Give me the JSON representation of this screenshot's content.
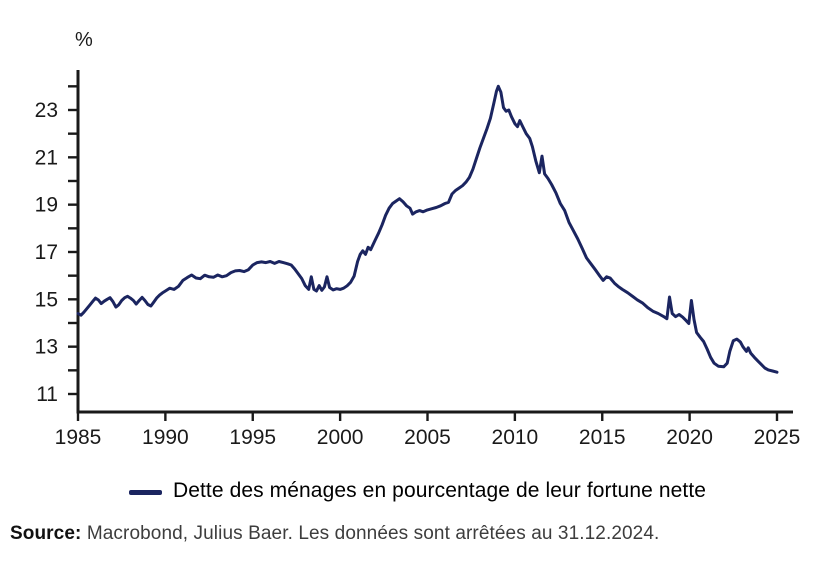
{
  "chart_data": {
    "type": "line",
    "title": "",
    "ylabel": "%",
    "xlabel": "",
    "grid": false,
    "legend_position": "bottom",
    "xlim": [
      1985,
      2025.9
    ],
    "ylim": [
      10.2,
      24.7
    ],
    "x_ticks": [
      1985,
      1990,
      1995,
      2000,
      2005,
      2010,
      2015,
      2020,
      2025
    ],
    "y_ticks": [
      11,
      12,
      13,
      14,
      15,
      16,
      17,
      18,
      19,
      20,
      21,
      22,
      23,
      24
    ],
    "y_tick_labels": [
      11,
      13,
      15,
      17,
      19,
      21,
      23
    ],
    "series": [
      {
        "name": "Dette des ménages en pourcentage de leur fortune nette",
        "color": "#1b2560",
        "points": [
          [
            1985.0,
            14.4
          ],
          [
            1985.17,
            14.33
          ],
          [
            1985.33,
            14.45
          ],
          [
            1985.5,
            14.6
          ],
          [
            1985.67,
            14.75
          ],
          [
            1985.83,
            14.9
          ],
          [
            1986.0,
            15.05
          ],
          [
            1986.17,
            14.97
          ],
          [
            1986.33,
            14.82
          ],
          [
            1986.5,
            14.92
          ],
          [
            1986.67,
            15.0
          ],
          [
            1986.83,
            15.07
          ],
          [
            1987.0,
            14.9
          ],
          [
            1987.17,
            14.67
          ],
          [
            1987.33,
            14.77
          ],
          [
            1987.5,
            14.95
          ],
          [
            1987.67,
            15.07
          ],
          [
            1987.83,
            15.13
          ],
          [
            1988.0,
            15.05
          ],
          [
            1988.17,
            14.95
          ],
          [
            1988.33,
            14.8
          ],
          [
            1988.5,
            14.95
          ],
          [
            1988.67,
            15.08
          ],
          [
            1988.83,
            14.95
          ],
          [
            1989.0,
            14.78
          ],
          [
            1989.17,
            14.72
          ],
          [
            1989.33,
            14.88
          ],
          [
            1989.5,
            15.05
          ],
          [
            1989.67,
            15.18
          ],
          [
            1989.83,
            15.27
          ],
          [
            1990.0,
            15.35
          ],
          [
            1990.25,
            15.47
          ],
          [
            1990.5,
            15.42
          ],
          [
            1990.75,
            15.55
          ],
          [
            1991.0,
            15.8
          ],
          [
            1991.25,
            15.92
          ],
          [
            1991.5,
            16.03
          ],
          [
            1991.75,
            15.9
          ],
          [
            1992.0,
            15.87
          ],
          [
            1992.25,
            16.02
          ],
          [
            1992.5,
            15.95
          ],
          [
            1992.75,
            15.93
          ],
          [
            1993.0,
            16.03
          ],
          [
            1993.25,
            15.95
          ],
          [
            1993.5,
            16.0
          ],
          [
            1993.75,
            16.13
          ],
          [
            1994.0,
            16.2
          ],
          [
            1994.25,
            16.22
          ],
          [
            1994.5,
            16.17
          ],
          [
            1994.75,
            16.25
          ],
          [
            1995.0,
            16.45
          ],
          [
            1995.25,
            16.55
          ],
          [
            1995.5,
            16.58
          ],
          [
            1995.75,
            16.55
          ],
          [
            1996.0,
            16.6
          ],
          [
            1996.25,
            16.52
          ],
          [
            1996.5,
            16.6
          ],
          [
            1996.75,
            16.55
          ],
          [
            1997.0,
            16.5
          ],
          [
            1997.2,
            16.45
          ],
          [
            1997.4,
            16.28
          ],
          [
            1997.6,
            16.08
          ],
          [
            1997.8,
            15.88
          ],
          [
            1998.0,
            15.58
          ],
          [
            1998.2,
            15.42
          ],
          [
            1998.35,
            15.95
          ],
          [
            1998.5,
            15.42
          ],
          [
            1998.65,
            15.35
          ],
          [
            1998.8,
            15.58
          ],
          [
            1998.95,
            15.38
          ],
          [
            1999.1,
            15.52
          ],
          [
            1999.25,
            15.95
          ],
          [
            1999.4,
            15.5
          ],
          [
            1999.6,
            15.4
          ],
          [
            1999.8,
            15.45
          ],
          [
            2000.0,
            15.42
          ],
          [
            2000.2,
            15.47
          ],
          [
            2000.4,
            15.57
          ],
          [
            2000.6,
            15.72
          ],
          [
            2000.8,
            15.98
          ],
          [
            2001.0,
            16.6
          ],
          [
            2001.15,
            16.9
          ],
          [
            2001.3,
            17.05
          ],
          [
            2001.45,
            16.9
          ],
          [
            2001.6,
            17.2
          ],
          [
            2001.75,
            17.1
          ],
          [
            2002.0,
            17.5
          ],
          [
            2002.2,
            17.8
          ],
          [
            2002.4,
            18.15
          ],
          [
            2002.6,
            18.55
          ],
          [
            2002.8,
            18.85
          ],
          [
            2003.0,
            19.05
          ],
          [
            2003.2,
            19.15
          ],
          [
            2003.4,
            19.25
          ],
          [
            2003.6,
            19.12
          ],
          [
            2003.8,
            18.95
          ],
          [
            2004.0,
            18.85
          ],
          [
            2004.15,
            18.6
          ],
          [
            2004.35,
            18.7
          ],
          [
            2004.55,
            18.75
          ],
          [
            2004.75,
            18.7
          ],
          [
            2005.0,
            18.78
          ],
          [
            2005.25,
            18.83
          ],
          [
            2005.5,
            18.88
          ],
          [
            2005.75,
            18.95
          ],
          [
            2006.0,
            19.05
          ],
          [
            2006.2,
            19.1
          ],
          [
            2006.4,
            19.45
          ],
          [
            2006.6,
            19.6
          ],
          [
            2006.8,
            19.7
          ],
          [
            2007.0,
            19.8
          ],
          [
            2007.2,
            19.95
          ],
          [
            2007.4,
            20.15
          ],
          [
            2007.6,
            20.5
          ],
          [
            2007.8,
            20.95
          ],
          [
            2008.0,
            21.4
          ],
          [
            2008.2,
            21.8
          ],
          [
            2008.4,
            22.2
          ],
          [
            2008.6,
            22.65
          ],
          [
            2008.8,
            23.3
          ],
          [
            2008.95,
            23.8
          ],
          [
            2009.05,
            24.0
          ],
          [
            2009.2,
            23.75
          ],
          [
            2009.35,
            23.1
          ],
          [
            2009.5,
            22.95
          ],
          [
            2009.65,
            23.0
          ],
          [
            2009.8,
            22.72
          ],
          [
            2010.0,
            22.42
          ],
          [
            2010.15,
            22.3
          ],
          [
            2010.28,
            22.55
          ],
          [
            2010.45,
            22.3
          ],
          [
            2010.65,
            22.0
          ],
          [
            2010.85,
            21.8
          ],
          [
            2011.0,
            21.45
          ],
          [
            2011.2,
            20.85
          ],
          [
            2011.4,
            20.35
          ],
          [
            2011.55,
            21.05
          ],
          [
            2011.7,
            20.3
          ],
          [
            2011.9,
            20.1
          ],
          [
            2012.1,
            19.85
          ],
          [
            2012.35,
            19.5
          ],
          [
            2012.6,
            19.05
          ],
          [
            2012.85,
            18.75
          ],
          [
            2013.1,
            18.25
          ],
          [
            2013.35,
            17.9
          ],
          [
            2013.6,
            17.55
          ],
          [
            2013.85,
            17.15
          ],
          [
            2014.1,
            16.75
          ],
          [
            2014.35,
            16.5
          ],
          [
            2014.6,
            16.25
          ],
          [
            2014.85,
            16.0
          ],
          [
            2015.05,
            15.8
          ],
          [
            2015.25,
            15.95
          ],
          [
            2015.45,
            15.9
          ],
          [
            2015.7,
            15.68
          ],
          [
            2015.9,
            15.55
          ],
          [
            2016.15,
            15.42
          ],
          [
            2016.45,
            15.28
          ],
          [
            2016.75,
            15.12
          ],
          [
            2017.0,
            14.98
          ],
          [
            2017.3,
            14.85
          ],
          [
            2017.6,
            14.65
          ],
          [
            2017.9,
            14.5
          ],
          [
            2018.2,
            14.4
          ],
          [
            2018.5,
            14.28
          ],
          [
            2018.7,
            14.18
          ],
          [
            2018.85,
            15.1
          ],
          [
            2019.0,
            14.4
          ],
          [
            2019.2,
            14.27
          ],
          [
            2019.4,
            14.36
          ],
          [
            2019.6,
            14.25
          ],
          [
            2019.8,
            14.1
          ],
          [
            2019.95,
            13.98
          ],
          [
            2020.1,
            14.95
          ],
          [
            2020.25,
            14.15
          ],
          [
            2020.4,
            13.6
          ],
          [
            2020.6,
            13.4
          ],
          [
            2020.8,
            13.22
          ],
          [
            2021.0,
            12.9
          ],
          [
            2021.2,
            12.55
          ],
          [
            2021.4,
            12.3
          ],
          [
            2021.65,
            12.17
          ],
          [
            2021.95,
            12.15
          ],
          [
            2022.15,
            12.3
          ],
          [
            2022.3,
            12.8
          ],
          [
            2022.5,
            13.25
          ],
          [
            2022.7,
            13.32
          ],
          [
            2022.9,
            13.2
          ],
          [
            2023.05,
            13.0
          ],
          [
            2023.25,
            12.8
          ],
          [
            2023.35,
            12.95
          ],
          [
            2023.5,
            12.72
          ],
          [
            2023.7,
            12.55
          ],
          [
            2023.9,
            12.4
          ],
          [
            2024.1,
            12.25
          ],
          [
            2024.3,
            12.1
          ],
          [
            2024.5,
            12.02
          ],
          [
            2024.75,
            11.97
          ],
          [
            2025.0,
            11.92
          ]
        ]
      }
    ]
  },
  "legend": {
    "label": "Dette des ménages en pourcentage de leur fortune nette"
  },
  "source": {
    "label": "Source:",
    "text": " Macrobond, Julius Baer. Les données sont arrêtées au 31.12.2024."
  },
  "colors": {
    "line": "#1b2560",
    "axis": "#1a1a1a",
    "source_text": "#3d3d3d"
  }
}
